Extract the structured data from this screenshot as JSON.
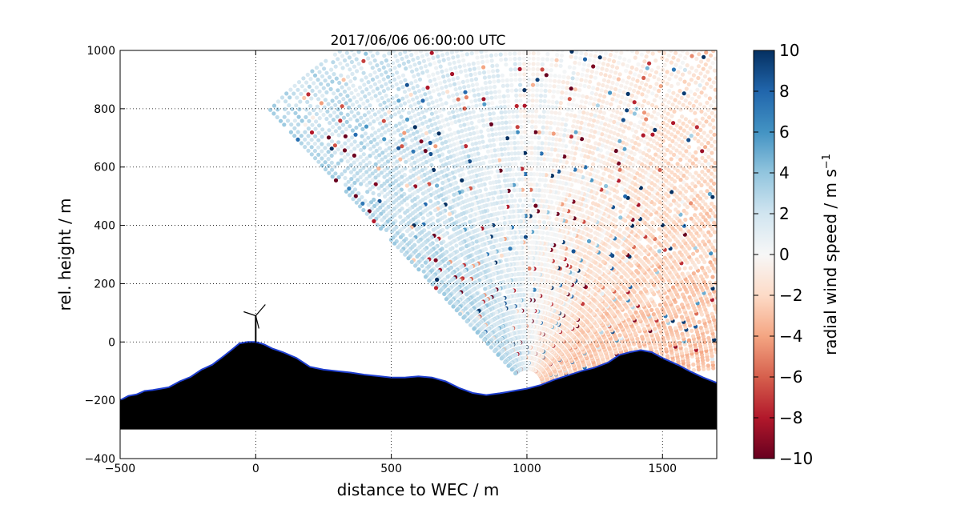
{
  "chart_data": {
    "type": "scatter",
    "title": "2017/06/06 06:00:00 UTC",
    "xlabel": "distance to WEC / m",
    "ylabel": "rel. height / m",
    "xlim": [
      -500,
      1700
    ],
    "ylim": [
      -400,
      1000
    ],
    "x_ticks": [
      -500,
      0,
      500,
      1000,
      1500
    ],
    "y_ticks": [
      -400,
      -200,
      0,
      200,
      400,
      600,
      800,
      1000
    ],
    "grid": "dotted",
    "scan_origin": {
      "x": 1000,
      "y": -150
    },
    "scan_elevation_range_deg": [
      5,
      135
    ],
    "max_range_m": 1350,
    "colorbar": {
      "label": "radial wind speed / m s",
      "label_exponent": "−1",
      "range": [
        -10,
        10
      ],
      "ticks": [
        -10,
        -8,
        -6,
        -4,
        -2,
        0,
        2,
        4,
        6,
        8,
        10
      ],
      "tick_labels": [
        "−10",
        "−8",
        "−6",
        "−4",
        "−2",
        "0",
        "2",
        "4",
        "6",
        "8",
        "10"
      ],
      "colormap": "RdBu",
      "colors": [
        "#67001f",
        "#b2182b",
        "#d6604d",
        "#f4a582",
        "#fddbc7",
        "#f7f7f7",
        "#d1e5f0",
        "#92c5de",
        "#4393c3",
        "#2166ac",
        "#053061"
      ]
    },
    "terrain": {
      "fill": "#000000",
      "outline": "#1f3fd0",
      "base_y": -300,
      "profile": [
        [
          -500,
          -200
        ],
        [
          -470,
          -185
        ],
        [
          -440,
          -180
        ],
        [
          -410,
          -168
        ],
        [
          -380,
          -165
        ],
        [
          -350,
          -160
        ],
        [
          -320,
          -155
        ],
        [
          -280,
          -135
        ],
        [
          -240,
          -120
        ],
        [
          -200,
          -95
        ],
        [
          -160,
          -78
        ],
        [
          -120,
          -50
        ],
        [
          -90,
          -28
        ],
        [
          -60,
          -5
        ],
        [
          -30,
          0
        ],
        [
          0,
          0
        ],
        [
          30,
          -8
        ],
        [
          60,
          -22
        ],
        [
          100,
          -35
        ],
        [
          150,
          -55
        ],
        [
          200,
          -85
        ],
        [
          250,
          -95
        ],
        [
          300,
          -100
        ],
        [
          350,
          -105
        ],
        [
          400,
          -112
        ],
        [
          450,
          -117
        ],
        [
          500,
          -122
        ],
        [
          550,
          -122
        ],
        [
          600,
          -118
        ],
        [
          650,
          -122
        ],
        [
          700,
          -135
        ],
        [
          750,
          -158
        ],
        [
          800,
          -175
        ],
        [
          850,
          -182
        ],
        [
          900,
          -176
        ],
        [
          950,
          -168
        ],
        [
          1000,
          -160
        ],
        [
          1050,
          -148
        ],
        [
          1100,
          -130
        ],
        [
          1150,
          -115
        ],
        [
          1200,
          -100
        ],
        [
          1250,
          -88
        ],
        [
          1300,
          -70
        ],
        [
          1340,
          -45
        ],
        [
          1380,
          -35
        ],
        [
          1420,
          -28
        ],
        [
          1460,
          -35
        ],
        [
          1500,
          -55
        ],
        [
          1560,
          -80
        ],
        [
          1600,
          -100
        ],
        [
          1650,
          -122
        ],
        [
          1700,
          -140
        ]
      ]
    },
    "wec": {
      "x": 0,
      "y": 0,
      "hub_height": 90
    }
  }
}
